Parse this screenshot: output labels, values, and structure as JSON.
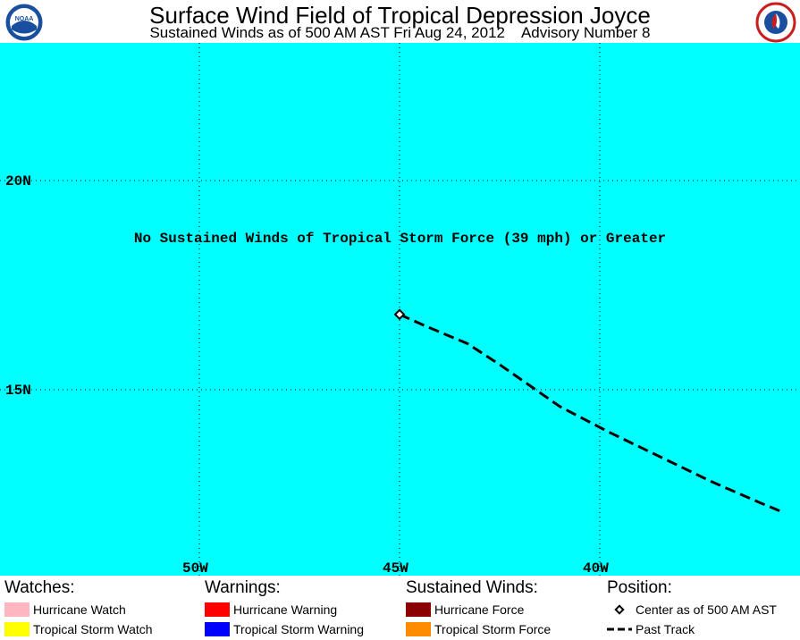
{
  "header": {
    "title": "Surface Wind Field of Tropical Depression Joyce",
    "subtitle": "Sustained Winds as of 500 AM AST Fri Aug 24, 2012    Advisory Number 8"
  },
  "map": {
    "message": "No Sustained Winds of Tropical Storm Force (39 mph) or Greater",
    "lat_labels": [
      "20N",
      "15N"
    ],
    "lon_labels": [
      "50W",
      "45W",
      "40W"
    ],
    "background_color": "#00ffff",
    "storm_center": {
      "lon": -45.0,
      "lat": 16.8
    },
    "past_track": [
      {
        "lon": -45.0,
        "lat": 16.8
      },
      {
        "lon": -44.3,
        "lat": 16.5
      },
      {
        "lon": -43.3,
        "lat": 16.1
      },
      {
        "lon": -42.5,
        "lat": 15.6
      },
      {
        "lon": -41.6,
        "lat": 15.0
      },
      {
        "lon": -41.0,
        "lat": 14.6
      },
      {
        "lon": -39.8,
        "lat": 14.0
      },
      {
        "lon": -38.5,
        "lat": 13.4
      },
      {
        "lon": -37.2,
        "lat": 12.8
      },
      {
        "lon": -36.0,
        "lat": 12.3
      },
      {
        "lon": -35.5,
        "lat": 12.1
      }
    ]
  },
  "legend": {
    "watches": {
      "heading": "Watches:",
      "items": [
        {
          "label": "Hurricane Watch",
          "color": "#ffb6c1"
        },
        {
          "label": "Tropical Storm Watch",
          "color": "#ffff00"
        }
      ]
    },
    "warnings": {
      "heading": "Warnings:",
      "items": [
        {
          "label": "Hurricane Warning",
          "color": "#ff0000"
        },
        {
          "label": "Tropical Storm Warning",
          "color": "#0000ff"
        }
      ]
    },
    "sustained_winds": {
      "heading": "Sustained Winds:",
      "items": [
        {
          "label": "Hurricane Force",
          "color": "#8b0000"
        },
        {
          "label": "Tropical Storm Force",
          "color": "#ff8c00"
        }
      ]
    },
    "position": {
      "heading": "Position:",
      "items": [
        {
          "label": "Center as of 500 AM AST",
          "icon": "diamond-icon"
        },
        {
          "label": "Past Track",
          "icon": "dashed-line-icon"
        }
      ]
    }
  }
}
